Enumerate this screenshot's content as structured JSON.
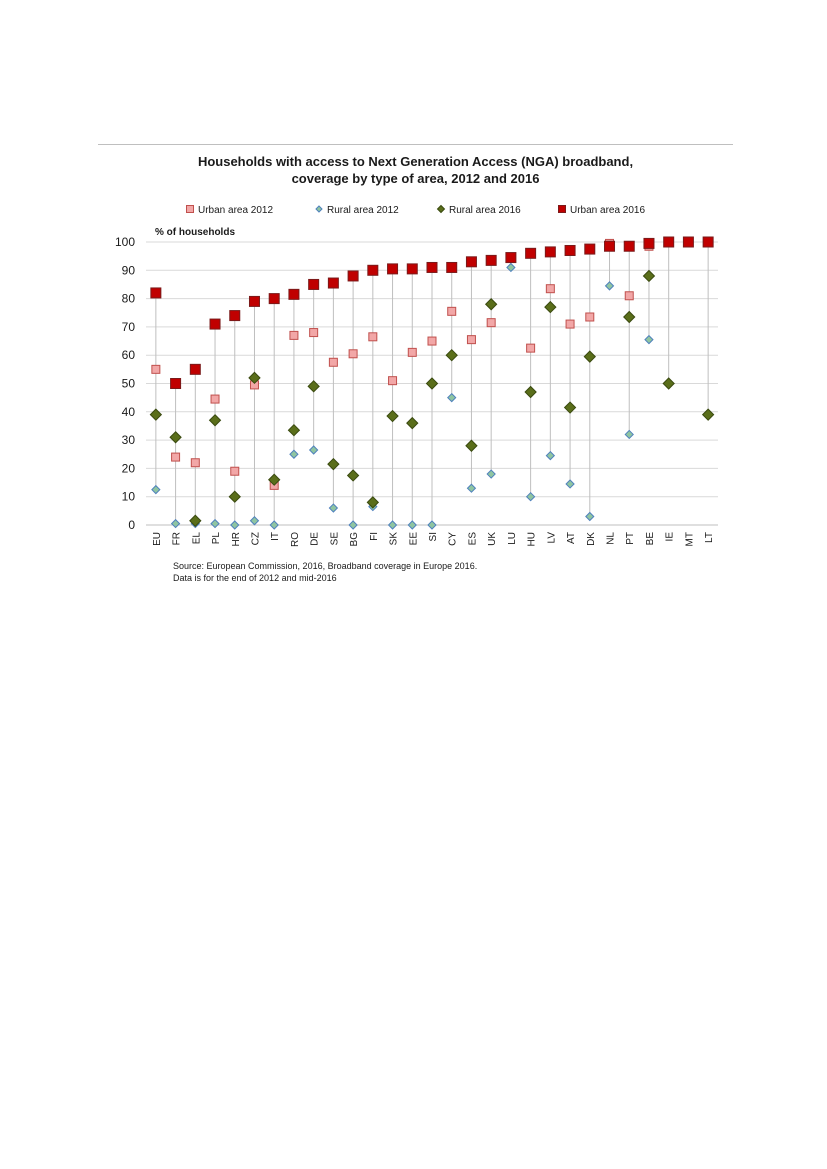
{
  "chart_data": {
    "type": "scatter",
    "title": "Households with access to Next Generation Access (NGA) broadband,",
    "subtitle": "coverage by type of area, 2012 and 2016",
    "ylabel": "% of households",
    "ylim": [
      0,
      100
    ],
    "yticks": [
      0,
      10,
      20,
      30,
      40,
      50,
      60,
      70,
      80,
      90,
      100
    ],
    "grid": true,
    "legend_position": "top",
    "categories": [
      "EU",
      "FR",
      "EL",
      "PL",
      "HR",
      "CZ",
      "IT",
      "RO",
      "DE",
      "SE",
      "BG",
      "FI",
      "SK",
      "EE",
      "SI",
      "CY",
      "ES",
      "UK",
      "LU",
      "HU",
      "LV",
      "AT",
      "DK",
      "NL",
      "PT",
      "BE",
      "IE",
      "MT",
      "LT"
    ],
    "series": [
      {
        "name": "Urban area 2012",
        "marker": "square",
        "color": "#f2a7a7",
        "stroke": "#c0504d",
        "values": [
          55,
          24,
          22,
          44.5,
          19,
          49.5,
          14,
          67,
          68,
          57.5,
          60.5,
          66.5,
          51,
          61,
          65,
          75.5,
          65.5,
          71.5,
          null,
          62.5,
          83.5,
          71,
          73.5,
          99.5,
          81,
          98.5,
          null,
          null,
          null
        ]
      },
      {
        "name": "Rural area 2012",
        "marker": "diamond",
        "color": "#8fc5a1",
        "stroke": "#4f81bd",
        "values": [
          12.5,
          0.5,
          0.5,
          0.5,
          0,
          1.5,
          0,
          25,
          26.5,
          6,
          0,
          6.5,
          0,
          0,
          0,
          45,
          13,
          18,
          91,
          10,
          24.5,
          14.5,
          3,
          84.5,
          32,
          65.5,
          null,
          null,
          null
        ]
      },
      {
        "name": "Rural area 2016",
        "marker": "diamond",
        "color": "#5a6e1a",
        "stroke": "#3a4a10",
        "values": [
          39,
          31,
          1.5,
          37,
          10,
          52,
          16,
          33.5,
          49,
          21.5,
          17.5,
          8,
          38.5,
          36,
          50,
          60,
          28,
          78,
          null,
          47,
          77,
          41.5,
          59.5,
          null,
          73.5,
          88,
          50,
          null,
          39
        ]
      },
      {
        "name": "Urban area 2016",
        "marker": "square",
        "color": "#c00000",
        "stroke": "#7a1a1a",
        "values": [
          82,
          50,
          55,
          71,
          74,
          79,
          80,
          81.5,
          85,
          85.5,
          88,
          90,
          90.5,
          90.5,
          91,
          91,
          93,
          93.5,
          94.5,
          96,
          96.5,
          97,
          97.5,
          98.5,
          98.5,
          99.5,
          100,
          100,
          100
        ]
      }
    ]
  },
  "source": {
    "line1": "Source: European Commission, 2016,  Broadband coverage in Europe 2016.",
    "line2": "Data is for the end of 2012 and mid-2016"
  }
}
